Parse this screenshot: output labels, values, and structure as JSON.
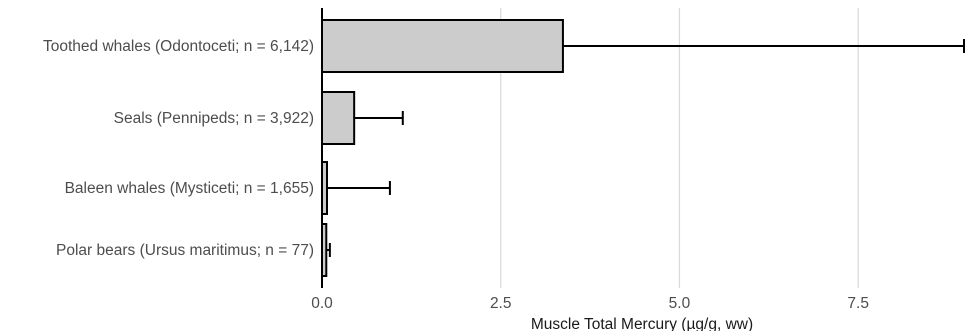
{
  "chart_data": {
    "type": "bar",
    "orientation": "horizontal",
    "categories": [
      "Toothed whales (Odontoceti; n = 6,142)",
      "Seals (Pennipeds; n = 3,922)",
      "Baleen whales (Mysticeti; n = 1,655)",
      "Polar bears (Ursus maritimus; n = 77)"
    ],
    "values": [
      3.37,
      0.45,
      0.07,
      0.06
    ],
    "error_upper": [
      8.98,
      1.13,
      0.95,
      0.11
    ],
    "xlabel": "Muscle Total Mercury (µg/g, ww)",
    "ylabel": "",
    "xlim": [
      0,
      8.98
    ],
    "xticks": [
      0,
      2.5,
      5,
      7.5
    ],
    "xtick_labels": [
      "0.0",
      "2.5",
      "5.0",
      "7.5"
    ],
    "grid": "vertical major gridlines",
    "bar_color": "#cccccc",
    "bar_edge_color": "#000000"
  }
}
